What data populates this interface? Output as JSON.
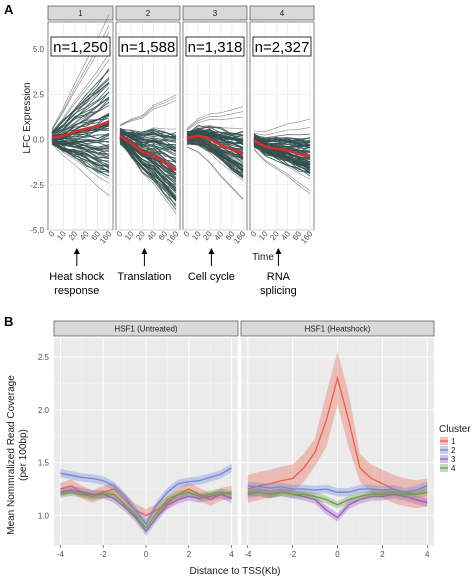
{
  "panel_a": {
    "letter": "A",
    "ylabel": "LFC Expression",
    "xlabel": "Time",
    "yticks": [
      "-5.0",
      "-2.5",
      "0.0",
      "2.5",
      "5.0"
    ],
    "xticks": [
      "0",
      "10",
      "20",
      "40",
      "60",
      "160"
    ],
    "facets": [
      {
        "strip": "1",
        "count": "n=1,250",
        "annotation": [
          "Heat shock",
          "response"
        ]
      },
      {
        "strip": "2",
        "count": "n=1,588",
        "annotation": [
          "Translation"
        ]
      },
      {
        "strip": "3",
        "count": "n=1,318",
        "annotation": [
          "Cell cycle"
        ]
      },
      {
        "strip": "4",
        "count": "n=2,327",
        "annotation": [
          "RNA",
          "splicing"
        ]
      }
    ]
  },
  "panel_b": {
    "letter": "B",
    "ylabel_line1": "Mean Nommralized Read Coverage",
    "ylabel_line2": "(per 100bp)",
    "xlabel": "Distance to TSS(Kb)",
    "yticks": [
      "1.0",
      "1.5",
      "2.0",
      "2.5"
    ],
    "xticks": [
      "-4",
      "-2",
      "0",
      "2",
      "4"
    ],
    "facets": [
      {
        "strip": "HSF1 (Untreated)"
      },
      {
        "strip": "HSF1 (Heatshock)"
      }
    ],
    "legend": {
      "title": "Cluster",
      "items": [
        {
          "label": "1",
          "color": "#e8604a"
        },
        {
          "label": "2",
          "color": "#6f86d6"
        },
        {
          "label": "3",
          "color": "#9b59c6"
        },
        {
          "label": "4",
          "color": "#6e9e4e"
        }
      ]
    }
  },
  "chart_data": [
    {
      "type": "line",
      "title": "",
      "xlabel": "Time",
      "ylabel": "LFC Expression",
      "categories": [
        "0",
        "10",
        "20",
        "40",
        "60",
        "160"
      ],
      "ylim": [
        -5,
        6.5
      ],
      "series_note_color": "#c62828",
      "series": [
        {
          "name": "1",
          "values": [
            0.1,
            0.2,
            0.45,
            0.6,
            0.75,
            1.0
          ]
        },
        {
          "name": "2",
          "values": [
            0.2,
            -0.2,
            -0.7,
            -0.85,
            -1.3,
            -1.7
          ]
        },
        {
          "name": "3",
          "values": [
            0.1,
            0.2,
            0.05,
            -0.3,
            -0.55,
            -0.8
          ]
        },
        {
          "name": "4",
          "values": [
            -0.05,
            -0.4,
            -0.5,
            -0.6,
            -0.8,
            -0.95
          ]
        }
      ]
    },
    {
      "type": "line",
      "title": "",
      "xlabel": "Distance to TSS(Kb)",
      "ylabel": "Mean Nommralized Read Coverage (per 100bp)",
      "x": [
        -4,
        -3.5,
        -3,
        -2.5,
        -2,
        -1.5,
        -1,
        -0.5,
        0,
        0.5,
        1,
        1.5,
        2,
        2.5,
        3,
        3.5,
        4
      ],
      "ylim": [
        0.72,
        2.68
      ],
      "panels": [
        {
          "name": "HSF1 (Untreated)",
          "series": [
            {
              "name": "1",
              "values": [
                1.25,
                1.28,
                1.22,
                1.18,
                1.22,
                1.25,
                1.15,
                1.05,
                1.0,
                1.05,
                1.12,
                1.2,
                1.25,
                1.2,
                1.15,
                1.2,
                1.22
              ]
            },
            {
              "name": "2",
              "values": [
                1.4,
                1.38,
                1.36,
                1.35,
                1.33,
                1.28,
                1.18,
                1.05,
                0.92,
                1.1,
                1.22,
                1.3,
                1.32,
                1.33,
                1.36,
                1.39,
                1.45
              ]
            },
            {
              "name": "3",
              "values": [
                1.22,
                1.24,
                1.22,
                1.2,
                1.2,
                1.16,
                1.08,
                0.98,
                0.85,
                0.98,
                1.1,
                1.15,
                1.18,
                1.16,
                1.18,
                1.2,
                1.16
              ]
            },
            {
              "name": "4",
              "values": [
                1.2,
                1.22,
                1.2,
                1.18,
                1.2,
                1.2,
                1.1,
                1.0,
                0.88,
                1.02,
                1.15,
                1.2,
                1.22,
                1.18,
                1.2,
                1.22,
                1.2
              ]
            }
          ]
        },
        {
          "name": "HSF1 (Heatshock)",
          "series": [
            {
              "name": "1",
              "values": [
                1.25,
                1.28,
                1.3,
                1.33,
                1.35,
                1.45,
                1.6,
                1.9,
                2.3,
                1.9,
                1.45,
                1.35,
                1.3,
                1.25,
                1.22,
                1.2,
                1.22
              ]
            },
            {
              "name": "2",
              "values": [
                1.28,
                1.27,
                1.26,
                1.27,
                1.25,
                1.25,
                1.24,
                1.25,
                1.22,
                1.22,
                1.25,
                1.25,
                1.24,
                1.25,
                1.22,
                1.24,
                1.28
              ]
            },
            {
              "name": "3",
              "values": [
                1.2,
                1.22,
                1.2,
                1.22,
                1.2,
                1.18,
                1.15,
                1.05,
                0.98,
                1.1,
                1.15,
                1.18,
                1.18,
                1.2,
                1.18,
                1.15,
                1.12
              ]
            },
            {
              "name": "4",
              "values": [
                1.22,
                1.22,
                1.2,
                1.22,
                1.2,
                1.2,
                1.18,
                1.15,
                1.1,
                1.15,
                1.18,
                1.2,
                1.2,
                1.22,
                1.2,
                1.2,
                1.22
              ]
            }
          ]
        }
      ]
    }
  ]
}
